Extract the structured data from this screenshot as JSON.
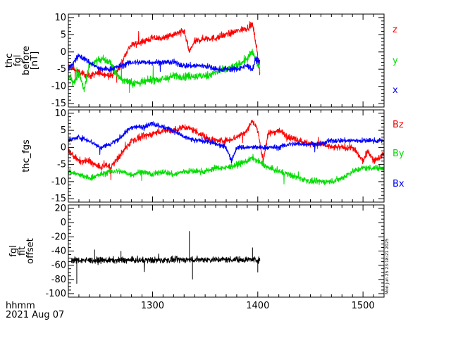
{
  "colors": {
    "red": "#ff0000",
    "green": "#00dd00",
    "blue": "#0000ff",
    "black": "#000000"
  },
  "footer": {
    "line1": "hhmm",
    "line2": "2021 Aug 07"
  },
  "stamp": "Mon Jun 25 23:18:21 2025",
  "chart_data": [
    {
      "type": "line",
      "ylabel": [
        "thc",
        "fgl",
        "before",
        "[nT]"
      ],
      "xlim": [
        1220,
        1520
      ],
      "ylim": [
        -16,
        11
      ],
      "yticks": [
        10,
        5,
        0,
        -5,
        -10,
        -15
      ],
      "legend": [
        "z",
        "y",
        "x"
      ],
      "series": [
        {
          "name": "z",
          "color": "#ff0000",
          "noise": 0.9,
          "x": [
            1220,
            1230,
            1240,
            1250,
            1260,
            1265,
            1270,
            1275,
            1280,
            1290,
            1300,
            1310,
            1320,
            1330,
            1335,
            1340,
            1350,
            1360,
            1370,
            1380,
            1390,
            1395,
            1398,
            1402
          ],
          "y": [
            -4,
            -6,
            -7,
            -6,
            -7,
            -6,
            -4,
            0,
            2,
            3,
            4,
            4,
            5,
            6,
            0,
            3,
            4,
            4,
            5,
            6,
            7,
            8,
            3,
            -6
          ]
        },
        {
          "name": "y",
          "color": "#00dd00",
          "noise": 1.1,
          "x": [
            1220,
            1225,
            1230,
            1235,
            1240,
            1250,
            1260,
            1265,
            1270,
            1280,
            1290,
            1300,
            1310,
            1320,
            1330,
            1340,
            1350,
            1360,
            1370,
            1380,
            1390,
            1395,
            1398,
            1402
          ],
          "y": [
            -7,
            -9,
            -6,
            -11,
            -4,
            -2,
            -3,
            -6,
            -8,
            -9,
            -9,
            -8,
            -8,
            -7,
            -7,
            -7,
            -7,
            -6,
            -5,
            -4,
            -2,
            0,
            -2,
            -5
          ]
        },
        {
          "name": "x",
          "color": "#0000ff",
          "noise": 0.8,
          "x": [
            1220,
            1230,
            1240,
            1250,
            1260,
            1270,
            1280,
            1290,
            1300,
            1310,
            1320,
            1330,
            1340,
            1350,
            1360,
            1370,
            1380,
            1390,
            1395,
            1398,
            1402
          ],
          "y": [
            -5,
            -1,
            -3,
            -5,
            -5,
            -4,
            -3,
            -3,
            -3,
            -3,
            -3,
            -4,
            -4,
            -4,
            -5,
            -5,
            -5,
            -4,
            -5,
            -2,
            -3
          ]
        }
      ]
    },
    {
      "type": "line",
      "ylabel": [
        "thc_fgs"
      ],
      "xlim": [
        1220,
        1520
      ],
      "ylim": [
        -16,
        11
      ],
      "yticks": [
        10,
        5,
        0,
        -5,
        -10,
        -15
      ],
      "legend": [
        "Bz",
        "By",
        "Bx"
      ],
      "series": [
        {
          "name": "Bz",
          "color": "#ff0000",
          "noise": 0.9,
          "x": [
            1220,
            1230,
            1240,
            1250,
            1255,
            1260,
            1270,
            1280,
            1290,
            1300,
            1310,
            1320,
            1330,
            1340,
            1350,
            1360,
            1370,
            1380,
            1390,
            1395,
            1400,
            1405,
            1410,
            1420,
            1430,
            1440,
            1450,
            1460,
            1470,
            1480,
            1490,
            1495,
            1500,
            1505,
            1510,
            1520
          ],
          "y": [
            -1,
            -4,
            -4,
            -6,
            -5,
            -6,
            -2,
            2,
            3,
            4,
            5,
            5,
            6,
            5,
            3,
            2,
            2,
            3,
            5,
            8,
            5,
            -4,
            4,
            5,
            3,
            2,
            1,
            1,
            0,
            0,
            0,
            -2,
            -4,
            -1,
            -4,
            -2
          ]
        },
        {
          "name": "By",
          "color": "#00dd00",
          "noise": 0.8,
          "x": [
            1220,
            1230,
            1240,
            1250,
            1260,
            1270,
            1280,
            1290,
            1300,
            1310,
            1320,
            1330,
            1340,
            1350,
            1360,
            1370,
            1380,
            1390,
            1395,
            1400,
            1410,
            1420,
            1430,
            1440,
            1450,
            1460,
            1470,
            1480,
            1490,
            1500,
            1510,
            1520
          ],
          "y": [
            -7,
            -8,
            -9,
            -8,
            -7,
            -7,
            -8,
            -7,
            -8,
            -7,
            -8,
            -7,
            -7,
            -7,
            -6,
            -6,
            -5,
            -4,
            -3,
            -4,
            -6,
            -7,
            -8,
            -9,
            -10,
            -10,
            -10,
            -9,
            -7,
            -6,
            -6,
            -6
          ]
        },
        {
          "name": "Bx",
          "color": "#0000ff",
          "noise": 0.7,
          "x": [
            1220,
            1230,
            1240,
            1250,
            1260,
            1270,
            1280,
            1290,
            1300,
            1310,
            1320,
            1330,
            1340,
            1350,
            1360,
            1370,
            1375,
            1380,
            1390,
            1400,
            1410,
            1420,
            1430,
            1440,
            1450,
            1460,
            1470,
            1480,
            1490,
            1500,
            1510,
            1520
          ],
          "y": [
            2,
            3,
            2,
            0,
            1,
            3,
            6,
            6,
            7,
            6,
            5,
            3,
            2,
            2,
            1,
            0,
            -4,
            0,
            0,
            0,
            0,
            0,
            1,
            1,
            1,
            1,
            2,
            2,
            2,
            2,
            2,
            2
          ]
        }
      ]
    },
    {
      "type": "line",
      "ylabel": [
        "fgl",
        "fit",
        "offset"
      ],
      "xlim": [
        1220,
        1520
      ],
      "ylim": [
        -105,
        25
      ],
      "yticks": [
        20,
        0,
        -20,
        -40,
        -60,
        -80,
        -100
      ],
      "legend": [],
      "series": [
        {
          "name": "",
          "color": "#000000",
          "noise": 4,
          "x": [
            1223,
            1260,
            1300,
            1340,
            1380,
            1395,
            1402
          ],
          "y": [
            -53,
            -53,
            -53,
            -52,
            -52,
            -52,
            -53
          ],
          "spikes": [
            [
              1228,
              -86
            ],
            [
              1245,
              -38
            ],
            [
              1270,
              -40
            ],
            [
              1335,
              -12
            ],
            [
              1338,
              -80
            ],
            [
              1395,
              -35
            ],
            [
              1400,
              -70
            ]
          ]
        }
      ]
    }
  ],
  "xaxis": {
    "ticks": [
      1300,
      1400,
      1500
    ]
  }
}
